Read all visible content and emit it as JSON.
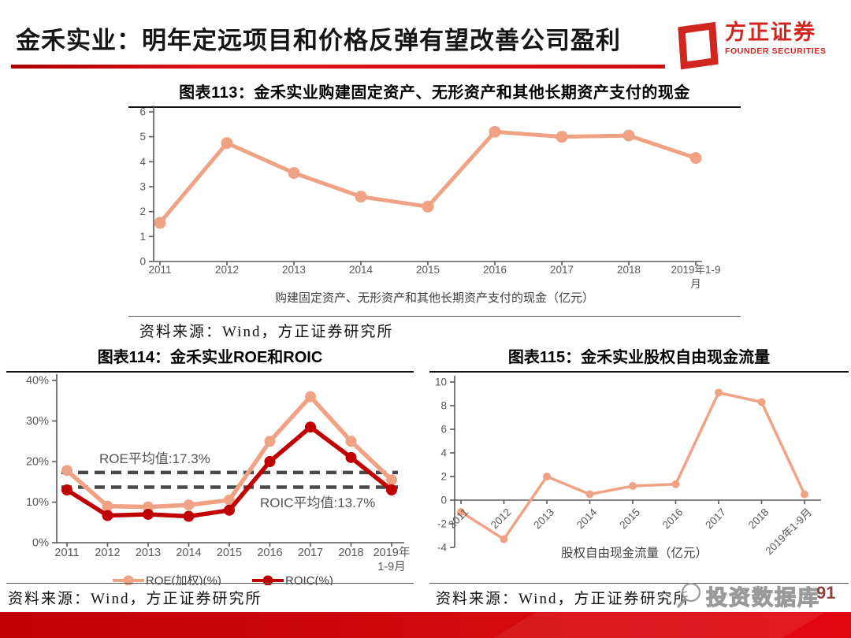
{
  "header": {
    "title": "金禾实业：明年定远项目和价格反弹有望改善公司盈利",
    "logo_text": "方正证券",
    "logo_subtitle": "FOUNDER SECURITIES"
  },
  "footer": {
    "page_number": "91",
    "watermark_text": "投资数据库"
  },
  "colors": {
    "accent_red": "#D30B0B",
    "salmon": "#F0A285",
    "dark_red": "#C00000",
    "axis_gray": "#595959"
  },
  "chart_data": [
    {
      "id": "fig113",
      "type": "line",
      "title": "图表113：金禾实业购建固定资产、无形资产和其他长期资产支付的现金",
      "categories": [
        "2011",
        "2012",
        "2013",
        "2014",
        "2015",
        "2016",
        "2017",
        "2018",
        "2019年1-9月"
      ],
      "series": [
        {
          "name": "购建固定资产、无形资产和其他长期资产支付的现金（亿元）",
          "color": "#F0A285",
          "values": [
            1.55,
            4.75,
            3.55,
            2.6,
            2.2,
            5.2,
            5.0,
            5.05,
            4.15
          ]
        }
      ],
      "ylim": [
        0,
        6
      ],
      "yticks": [
        "0",
        "1",
        "2",
        "3",
        "4",
        "5",
        "6"
      ],
      "legend_label": "购建固定资产、无形资产和其他长期资产支付的现金（亿元）",
      "source": "资料来源：Wind，方正证券研究所"
    },
    {
      "id": "fig114",
      "type": "line",
      "title": "图表114：金禾实业ROE和ROIC",
      "categories": [
        "2011",
        "2012",
        "2013",
        "2014",
        "2015",
        "2016",
        "2017",
        "2018",
        "2019年1-9月"
      ],
      "series": [
        {
          "name": "ROE(加权)(%)",
          "color": "#F0A285",
          "values": [
            17.8,
            9.0,
            8.8,
            9.3,
            10.5,
            25.0,
            36.0,
            25.0,
            15.5
          ]
        },
        {
          "name": "ROIC(%)",
          "color": "#C00000",
          "values": [
            13.0,
            6.7,
            7.0,
            6.5,
            8.0,
            20.0,
            28.5,
            21.0,
            13.0
          ]
        }
      ],
      "ylim": [
        0,
        40
      ],
      "yticks": [
        "0%",
        "10%",
        "20%",
        "30%",
        "40%"
      ],
      "ref_lines": [
        {
          "value": 17.3,
          "label": "ROE平均值:17.3%"
        },
        {
          "value": 13.7,
          "label": "ROIC平均值:13.7%"
        }
      ],
      "source": "资料来源：Wind，方正证券研究所"
    },
    {
      "id": "fig115",
      "type": "line",
      "title": "图表115：金禾实业股权自由现金流量",
      "categories": [
        "2011",
        "2012",
        "2013",
        "2014",
        "2015",
        "2016",
        "2017",
        "2018",
        "2019年1-9月"
      ],
      "series": [
        {
          "name": "股权自由现金流量（亿元）",
          "color": "#F0A285",
          "values": [
            -1.0,
            -3.3,
            2.0,
            0.5,
            1.2,
            1.35,
            9.1,
            8.3,
            0.5
          ]
        }
      ],
      "ylim": [
        -4,
        10
      ],
      "yticks": [
        "-4",
        "-2",
        "0",
        "2",
        "4",
        "6",
        "8",
        "10"
      ],
      "legend_label": "股权自由现金流量（亿元）",
      "source": "资料来源：Wind，方正证券研究所"
    }
  ]
}
